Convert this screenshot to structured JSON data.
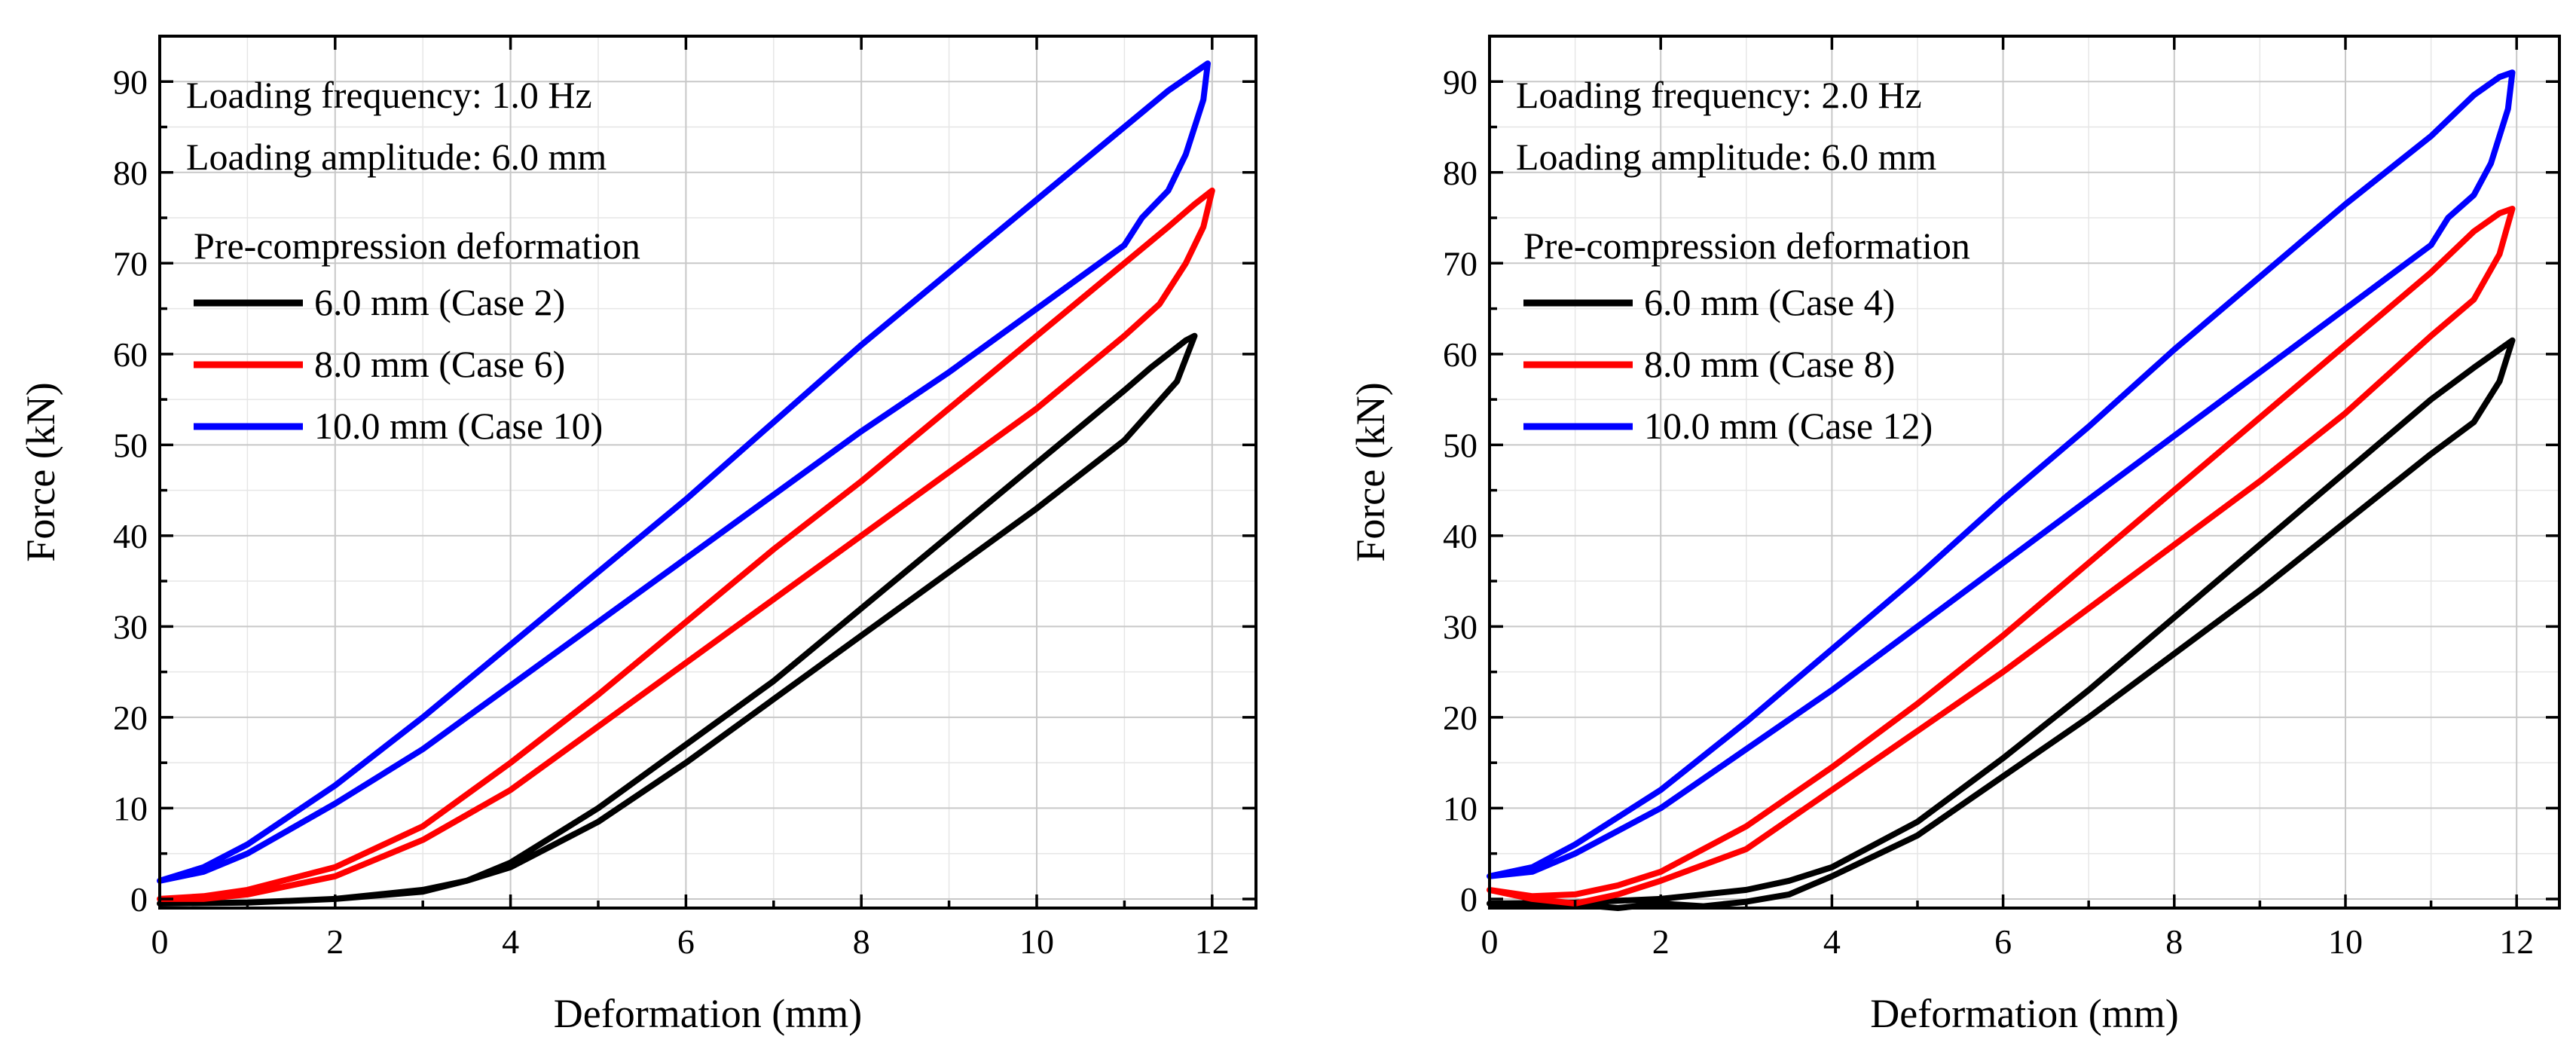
{
  "chart_data": [
    {
      "type": "line",
      "title": "",
      "xlabel": "Deformation (mm)",
      "ylabel": "Force (kN)",
      "xlim": [
        0,
        12.5
      ],
      "ylim": [
        -1,
        95
      ],
      "xticks": [
        0,
        2,
        4,
        6,
        8,
        10,
        12
      ],
      "yticks": [
        0,
        10,
        20,
        30,
        40,
        50,
        60,
        70,
        80,
        90
      ],
      "grid": true,
      "annotations": [
        "Loading frequency: 1.0 Hz",
        "Loading amplitude: 6.0 mm"
      ],
      "legend_title": "Pre-compression deformation",
      "legend_position": "top-left",
      "series": [
        {
          "name": "6.0 mm (Case 2)",
          "color": "#000000",
          "x": [
            0,
            1,
            2,
            3,
            3.5,
            4,
            5,
            6,
            7,
            8,
            9,
            10,
            11,
            11.3,
            11.5,
            11.7,
            11.8,
            11.6,
            11,
            10,
            9,
            8,
            7,
            6,
            5,
            4,
            3.5,
            3,
            2,
            1,
            0
          ],
          "y": [
            -0.5,
            -0.4,
            0,
            0.8,
            2,
            4,
            10,
            17,
            24,
            32,
            40,
            48,
            56,
            58.5,
            60,
            61.5,
            62,
            57,
            50.5,
            43,
            36,
            29,
            22,
            15,
            8.5,
            3.5,
            2,
            1,
            0,
            -0.4,
            -0.5
          ]
        },
        {
          "name": "8.0 mm (Case 6)",
          "color": "#ff0000",
          "x": [
            0,
            0.5,
            1,
            2,
            3,
            4,
            5,
            6,
            7,
            8,
            9,
            10,
            11,
            11.5,
            11.8,
            12,
            11.9,
            11.7,
            11.4,
            11,
            10,
            9,
            8,
            7,
            6,
            5,
            4,
            3,
            2,
            1,
            0.5,
            0
          ],
          "y": [
            0,
            0.3,
            1,
            3.5,
            8,
            15,
            22.5,
            30.5,
            38.5,
            46,
            54,
            62,
            70,
            74,
            76.5,
            78,
            74,
            70,
            65.5,
            62,
            54,
            47,
            40,
            33,
            26,
            19,
            12,
            6.5,
            2.5,
            0.5,
            0,
            0
          ]
        },
        {
          "name": "10.0 mm (Case 10)",
          "color": "#0000ff",
          "x": [
            0,
            0.5,
            1,
            2,
            3,
            4,
            5,
            6,
            7,
            8,
            9,
            10,
            11,
            11.5,
            11.8,
            11.95,
            11.9,
            11.7,
            11.5,
            11.2,
            11,
            10,
            9,
            8,
            7,
            6,
            5,
            4,
            3,
            2,
            1,
            0.5,
            0
          ],
          "y": [
            2,
            3.5,
            6,
            12.5,
            20,
            28,
            36,
            44,
            52.5,
            61,
            69,
            77,
            85,
            89,
            91,
            92,
            88,
            82,
            78,
            75,
            72,
            65,
            58,
            51.5,
            44.5,
            37.5,
            30.5,
            23.5,
            16.5,
            10.5,
            5,
            3,
            2
          ]
        }
      ]
    },
    {
      "type": "line",
      "title": "",
      "xlabel": "Deformation (mm)",
      "ylabel": "Force (kN)",
      "xlim": [
        0,
        12.5
      ],
      "ylim": [
        -1,
        95
      ],
      "xticks": [
        0,
        2,
        4,
        6,
        8,
        10,
        12
      ],
      "yticks": [
        0,
        10,
        20,
        30,
        40,
        50,
        60,
        70,
        80,
        90
      ],
      "grid": true,
      "annotations": [
        "Loading frequency: 2.0 Hz",
        "Loading amplitude: 6.0 mm"
      ],
      "legend_title": "Pre-compression deformation",
      "legend_position": "top-left",
      "series": [
        {
          "name": "6.0 mm (Case 4)",
          "color": "#000000",
          "x": [
            0,
            1,
            2,
            2.5,
            3,
            3.5,
            4,
            5,
            6,
            7,
            8,
            9,
            10,
            11,
            11.5,
            11.8,
            11.95,
            11.8,
            11.5,
            11,
            10,
            9,
            8,
            7,
            6,
            5,
            4,
            3.5,
            3,
            2.5,
            2,
            1.5,
            1,
            0
          ],
          "y": [
            -0.5,
            -0.4,
            0,
            0.5,
            1,
            2,
            3.5,
            8.5,
            15.5,
            23,
            31,
            39,
            47,
            55,
            58.5,
            60.5,
            61.5,
            57,
            52.5,
            49,
            41.5,
            34,
            27,
            20,
            13.5,
            7,
            2.5,
            0.5,
            -0.3,
            -0.8,
            -0.5,
            -1,
            -0.6,
            -0.5
          ]
        },
        {
          "name": "8.0 mm (Case 8)",
          "color": "#ff0000",
          "x": [
            0,
            0.5,
            1,
            1.5,
            2,
            3,
            4,
            5,
            6,
            7,
            8,
            9,
            10,
            11,
            11.5,
            11.8,
            11.95,
            11.8,
            11.5,
            11,
            10,
            9,
            8,
            7,
            6,
            5,
            4,
            3,
            2,
            1.5,
            1,
            0.5,
            0
          ],
          "y": [
            1,
            0.3,
            0.5,
            1.5,
            3,
            8,
            14.5,
            21.5,
            29,
            37,
            45,
            53,
            61,
            69,
            73.5,
            75.5,
            76,
            71,
            66,
            62,
            53.5,
            46,
            39,
            32,
            25,
            18.5,
            12,
            5.5,
            2,
            0.5,
            -0.5,
            0,
            1
          ]
        },
        {
          "name": "10.0 mm (Case 12)",
          "color": "#0000ff",
          "x": [
            0,
            0.5,
            1,
            2,
            3,
            4,
            5,
            6,
            7,
            8,
            9,
            10,
            11,
            11.5,
            11.8,
            11.95,
            11.9,
            11.7,
            11.5,
            11.2,
            11,
            10,
            9,
            8,
            7,
            6,
            5,
            4,
            3,
            2,
            1,
            0.5,
            0
          ],
          "y": [
            2.5,
            3.5,
            6,
            12,
            19.5,
            27.5,
            35.5,
            44,
            52,
            60.5,
            68.5,
            76.5,
            84,
            88.5,
            90.5,
            91,
            87,
            81,
            77.5,
            75,
            72,
            65,
            58,
            51,
            44,
            37,
            30,
            23,
            16.5,
            10,
            5,
            3,
            2.5
          ]
        }
      ]
    }
  ]
}
